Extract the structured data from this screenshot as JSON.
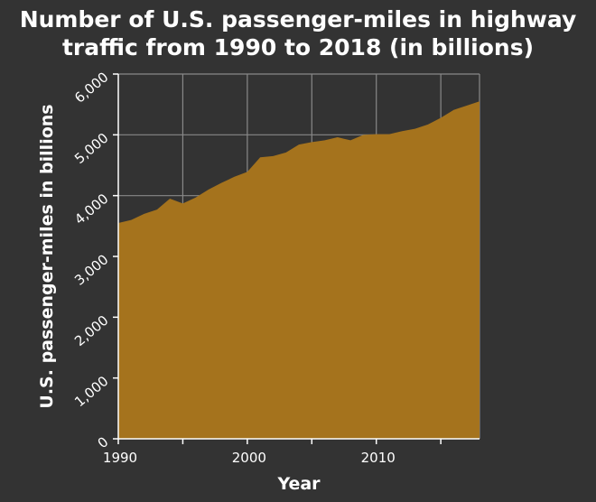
{
  "chart_data": {
    "type": "area",
    "title": "Number of U.S. passenger-miles in highway\ntraffic from 1990 to 2018 (in billions)",
    "xlabel": "Year",
    "ylabel": "U.S. passenger-miles in billions",
    "xlim": [
      1990,
      2018
    ],
    "ylim": [
      0,
      6000
    ],
    "x_ticks": [
      1990,
      2000,
      2010
    ],
    "x_tick_labels": [
      "1990",
      "2000",
      "2010"
    ],
    "y_ticks": [
      0,
      1000,
      2000,
      3000,
      4000,
      5000,
      6000
    ],
    "y_tick_labels": [
      "0",
      "1,000",
      "2,000",
      "3,000",
      "4,000",
      "5,000",
      "6,000"
    ],
    "x_grid_values": [
      1995,
      2005,
      2015
    ],
    "grid": true,
    "fill_color": "#a5731d",
    "background_color": "#333333",
    "grid_color": "#888888",
    "text_color": "#ffffff",
    "series": [
      {
        "x": [
          1990,
          1991,
          1992,
          1993,
          1994,
          1995,
          1996,
          1997,
          1998,
          1999,
          2000,
          2001,
          2002,
          2003,
          2004,
          2005,
          2006,
          2007,
          2008,
          2009,
          2010,
          2011,
          2012,
          2013,
          2014,
          2015,
          2016,
          2017,
          2018
        ],
        "values": [
          3550,
          3600,
          3700,
          3770,
          3950,
          3870,
          3970,
          4100,
          4210,
          4310,
          4390,
          4630,
          4650,
          4710,
          4840,
          4880,
          4910,
          4960,
          4910,
          5000,
          5010,
          5010,
          5060,
          5100,
          5170,
          5280,
          5410,
          5480,
          5550
        ]
      }
    ]
  }
}
